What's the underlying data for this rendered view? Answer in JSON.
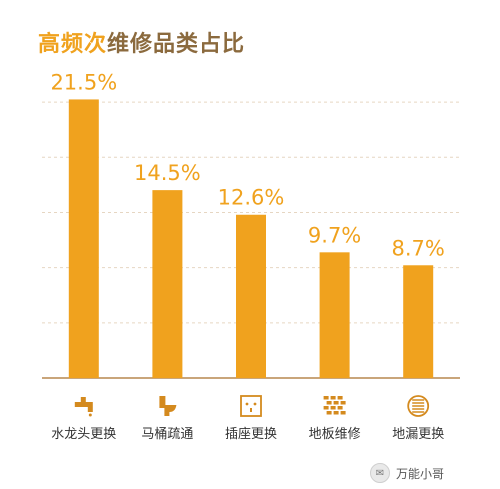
{
  "title": {
    "part1": "高频次",
    "part2": "维修品类占比"
  },
  "colors": {
    "bar": "#F0A21E",
    "label": "#F0A21E",
    "axis": "#C9A57A",
    "grid": "#E6D6C2",
    "icon": "#D48A1E",
    "text": "#333333"
  },
  "watermark": {
    "text": "万能小哥",
    "icon": "wechat-icon"
  },
  "chart_data": {
    "type": "bar",
    "title": "高频次维修品类占比",
    "categories": [
      "水龙头更换",
      "马桶疏通",
      "插座更换",
      "地板维修",
      "地漏更换"
    ],
    "values": [
      21.5,
      14.5,
      12.6,
      9.7,
      8.7
    ],
    "value_labels": [
      "21.5%",
      "14.5%",
      "12.6%",
      "9.7%",
      "8.7%"
    ],
    "icons": [
      "faucet-icon",
      "toilet-icon",
      "socket-icon",
      "floor-icon",
      "drain-icon"
    ],
    "xlabel": "",
    "ylabel": "",
    "ylim": [
      0,
      23
    ],
    "grid": true,
    "legend": "none"
  }
}
